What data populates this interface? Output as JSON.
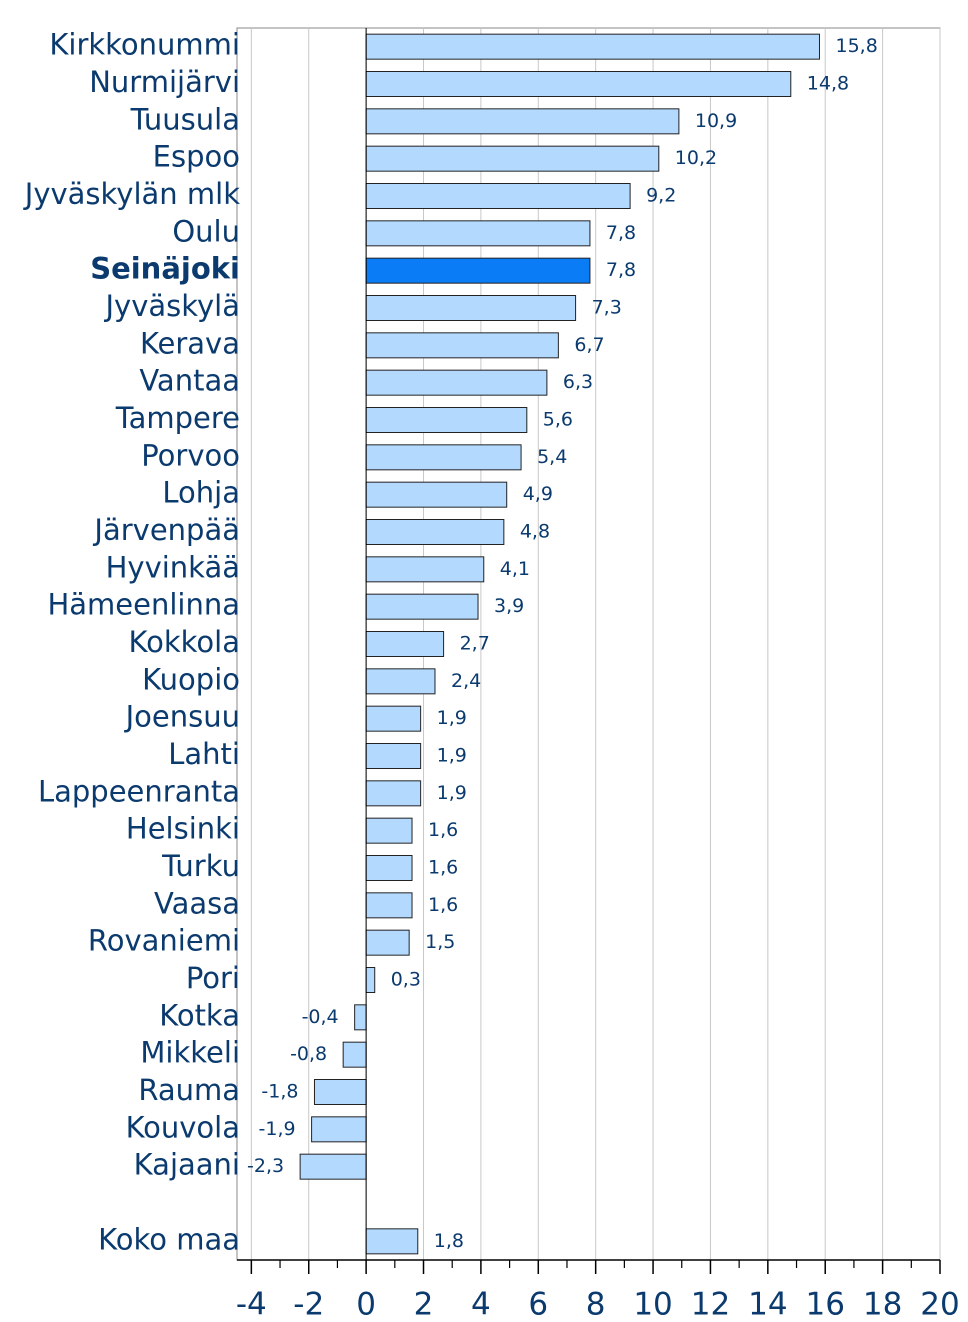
{
  "chart_data": {
    "type": "barh",
    "categories": [
      "Kirkkonummi",
      "Nurmijärvi",
      "Tuusula",
      "Espoo",
      "Jyväskylän mlk",
      "Oulu",
      "Seinäjoki",
      "Jyväskylä",
      "Kerava",
      "Vantaa",
      "Tampere",
      "Porvoo",
      "Lohja",
      "Järvenpää",
      "Hyvinkää",
      "Hämeenlinna",
      "Kokkola",
      "Kuopio",
      "Joensuu",
      "Lahti",
      "Lappeenranta",
      "Helsinki",
      "Turku",
      "Vaasa",
      "Rovaniemi",
      "Pori",
      "Kotka",
      "Mikkeli",
      "Rauma",
      "Kouvola",
      "Kajaani",
      null,
      "Koko maa"
    ],
    "values": [
      15.8,
      14.8,
      10.9,
      10.2,
      9.2,
      7.8,
      7.8,
      7.3,
      6.7,
      6.3,
      5.6,
      5.4,
      4.9,
      4.8,
      4.1,
      3.9,
      2.7,
      2.4,
      1.9,
      1.9,
      1.9,
      1.6,
      1.6,
      1.6,
      1.5,
      0.3,
      -0.4,
      -0.8,
      -1.8,
      -1.9,
      -2.3,
      null,
      1.8
    ],
    "value_labels": [
      "15,8",
      "14,8",
      "10,9",
      "10,2",
      "9,2",
      "7,8",
      "7,8",
      "7,3",
      "6,7",
      "6,3",
      "5,6",
      "5,4",
      "4,9",
      "4,8",
      "4,1",
      "3,9",
      "2,7",
      "2,4",
      "1,9",
      "1,9",
      "1,9",
      "1,6",
      "1,6",
      "1,6",
      "1,5",
      "0,3",
      "-0,4",
      "-0,8",
      "-1,8",
      "-1,9",
      "-2,3",
      null,
      "1,8"
    ],
    "bar_colors": [
      "#b3d9ff",
      "#b3d9ff",
      "#b3d9ff",
      "#b3d9ff",
      "#b3d9ff",
      "#b3d9ff",
      "#0a7cf5",
      "#b3d9ff",
      "#b3d9ff",
      "#b3d9ff",
      "#b3d9ff",
      "#b3d9ff",
      "#b3d9ff",
      "#b3d9ff",
      "#b3d9ff",
      "#b3d9ff",
      "#b3d9ff",
      "#b3d9ff",
      "#b3d9ff",
      "#b3d9ff",
      "#b3d9ff",
      "#b3d9ff",
      "#b3d9ff",
      "#b3d9ff",
      "#b3d9ff",
      "#b3d9ff",
      "#b3d9ff",
      "#b3d9ff",
      "#b3d9ff",
      "#b3d9ff",
      "#b3d9ff",
      null,
      "#b3d9ff"
    ],
    "bold_categories": [
      false,
      false,
      false,
      false,
      false,
      false,
      true,
      false,
      false,
      false,
      false,
      false,
      false,
      false,
      false,
      false,
      false,
      false,
      false,
      false,
      false,
      false,
      false,
      false,
      false,
      false,
      false,
      false,
      false,
      false,
      false,
      false,
      false
    ],
    "xlim": [
      -4.5,
      20
    ],
    "xticks": [
      -4,
      -2,
      0,
      2,
      4,
      6,
      8,
      10,
      12,
      14,
      16,
      18,
      20
    ],
    "xminorticks": [
      -3,
      -1,
      1,
      3,
      5,
      7,
      9,
      11,
      13,
      15,
      17,
      19
    ],
    "grid": true
  }
}
